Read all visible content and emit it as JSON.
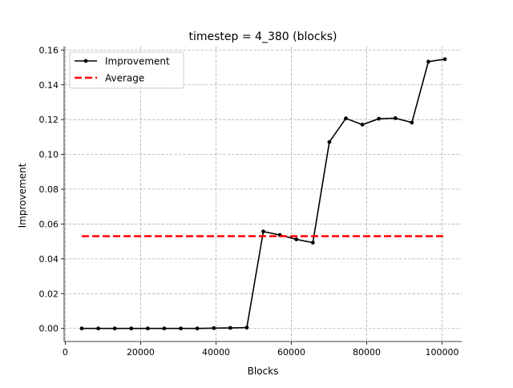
{
  "chart_data": {
    "type": "line",
    "title": "timestep = 4_380 (blocks)",
    "xlabel": "Blocks",
    "ylabel": "Improvement",
    "xlim": [
      -300,
      105200
    ],
    "ylim": [
      -0.0075,
      0.162
    ],
    "x_ticks": [
      0,
      20000,
      40000,
      60000,
      80000,
      100000
    ],
    "y_ticks": [
      0.0,
      0.02,
      0.04,
      0.06,
      0.08,
      0.1,
      0.12,
      0.14,
      0.16
    ],
    "x_tick_labels": [
      "0",
      "20000",
      "40000",
      "60000",
      "80000",
      "100000"
    ],
    "y_tick_labels": [
      "0.00",
      "0.02",
      "0.04",
      "0.06",
      "0.08",
      "0.10",
      "0.12",
      "0.14",
      "0.16"
    ],
    "grid": true,
    "legend_position": "top-left",
    "series": [
      {
        "name": "Improvement",
        "color": "#000000",
        "style": "solid-with-markers",
        "x": [
          4380,
          8760,
          13140,
          17520,
          21900,
          26280,
          30660,
          35040,
          39420,
          43800,
          48180,
          52560,
          56940,
          61320,
          65700,
          70080,
          74460,
          78840,
          83220,
          87600,
          91980,
          96360,
          100740
        ],
        "y": [
          0.0,
          0.0,
          0.0,
          0.0,
          0.0,
          0.0,
          0.0,
          0.0,
          0.0002,
          0.0003,
          0.0005,
          0.0557,
          0.0537,
          0.0512,
          0.0493,
          0.1071,
          0.1207,
          0.1171,
          0.1205,
          0.1208,
          0.1183,
          0.1533,
          0.1547
        ]
      },
      {
        "name": "Average",
        "color": "#ff0000",
        "style": "dashed",
        "x": [
          4380,
          100740
        ],
        "y": [
          0.053,
          0.053
        ]
      }
    ]
  }
}
